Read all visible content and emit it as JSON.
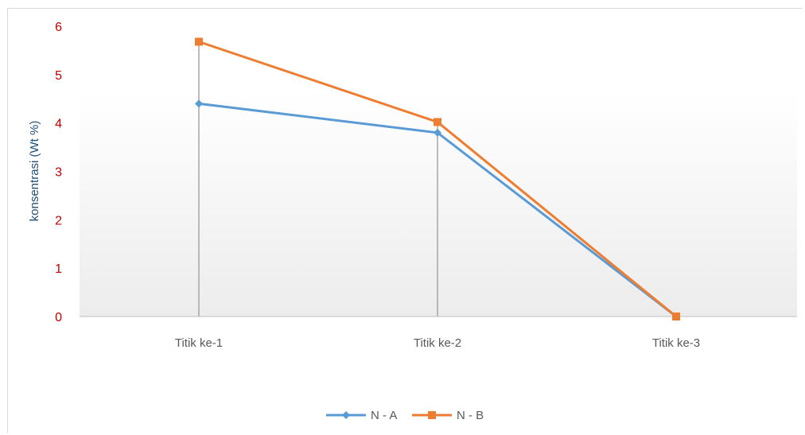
{
  "colors": {
    "accent_y_ticks": "#c00000",
    "ylabel_color": "#1f4e79",
    "text": "#595959",
    "series_a": "#5b9bd5",
    "series_b": "#ed7d31",
    "drop_lines": "#a6a6a6",
    "axis": "#bfbfbf"
  },
  "chart_data": {
    "type": "line",
    "title": "",
    "xlabel": "",
    "ylabel": "konsentrasi (Wt %)",
    "categories": [
      "Titik ke-1",
      "Titik ke-2",
      "Titik ke-3"
    ],
    "ylim": [
      0,
      6
    ],
    "yticks": [
      "0",
      "1",
      "2",
      "3",
      "4",
      "5",
      "6"
    ],
    "grid": false,
    "drop_lines": true,
    "legend_position": "bottom",
    "series": [
      {
        "name": "N - A",
        "values": [
          4.4,
          3.8,
          0
        ],
        "marker": "diamond",
        "color": "#5b9bd5"
      },
      {
        "name": "N - B",
        "values": [
          5.68,
          4.02,
          0
        ],
        "marker": "square",
        "color": "#ed7d31"
      }
    ]
  }
}
